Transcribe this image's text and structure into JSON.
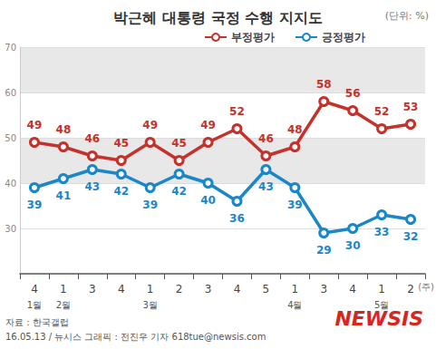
{
  "chart_data": {
    "type": "line",
    "title": "박근혜 대통령 국정 수행 지지도",
    "unit_label": "(단위: %)",
    "x_unit_label": "(주)",
    "categories": [
      "4",
      "1",
      "3",
      "4",
      "1",
      "2",
      "3",
      "4",
      "5",
      "1",
      "3",
      "4",
      "1",
      "2"
    ],
    "x_groups": [
      "1월",
      "2월",
      null,
      null,
      "3월",
      null,
      null,
      null,
      null,
      "4월",
      null,
      null,
      "5월",
      null
    ],
    "series": [
      {
        "name": "부정평가",
        "color": "#c4322c",
        "values": [
          49,
          48,
          46,
          45,
          49,
          45,
          49,
          52,
          46,
          48,
          58,
          56,
          52,
          53
        ]
      },
      {
        "name": "긍정평가",
        "color": "#1b86c8",
        "values": [
          39,
          41,
          43,
          42,
          39,
          42,
          40,
          36,
          43,
          39,
          29,
          30,
          33,
          32
        ]
      }
    ],
    "ylim": [
      20,
      70
    ],
    "yticks": [
      30,
      40,
      50,
      60,
      70
    ],
    "grid": true,
    "legend": "top",
    "data_labels": true,
    "marker": "circle",
    "source": "자료 : 한국갤럽",
    "credit": "16.05.13 / 뉴시스 그래픽 : 전진우 기자 618tue@newsis.com",
    "logo": "NEWSIS"
  }
}
